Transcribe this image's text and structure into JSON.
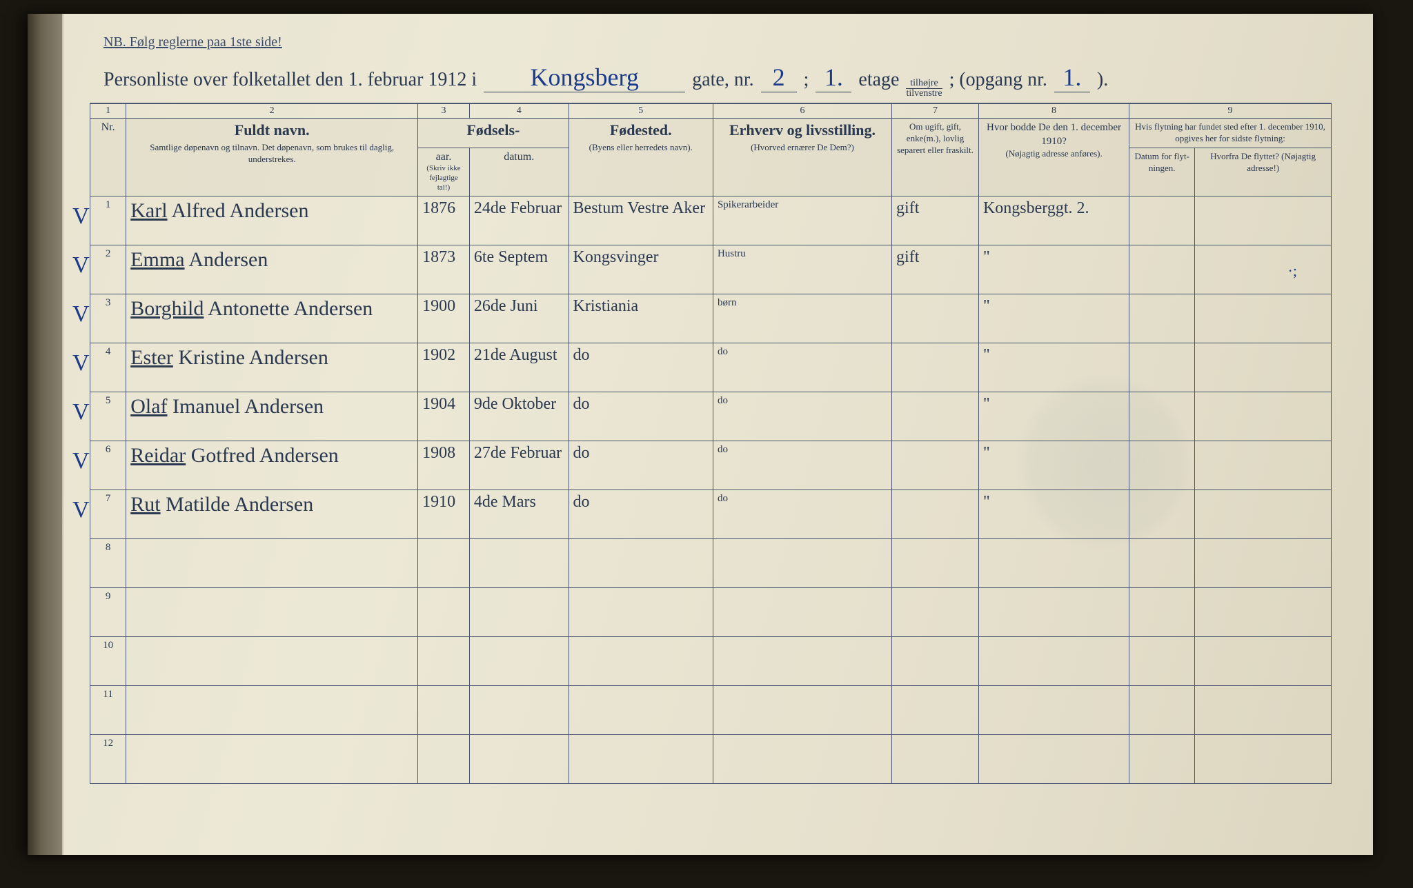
{
  "top_note": "NB.  Følg reglerne paa 1ste side!",
  "header": {
    "lead": "Personliste over folketallet den 1. februar 1912 i",
    "street": "Kongsberg",
    "gate": "gate, nr.",
    "nr": "2",
    "semi": ";",
    "etage_val": "1.",
    "etage": "etage",
    "side_top": "tilhøjre",
    "side_bot": "tilvenstre",
    "opgang": "; (opgang nr.",
    "opgang_val": "1.",
    "close": ")."
  },
  "cols": {
    "c1": "Nr.",
    "c2_big": "Fuldt navn.",
    "c2_sub": "Samtlige døpenavn og tilnavn. Det døpenavn, som brukes til daglig, understrekes.",
    "c34_top": "Fødsels-",
    "c3": "aar.",
    "c4": "datum.",
    "c34_note": "(Skriv ikke fejlagtige tal!)",
    "c5_big": "Fødested.",
    "c5_sub": "(Byens eller herredets navn).",
    "c6_big": "Erhverv og livsstilling.",
    "c6_sub": "(Hvorved ernærer De Dem?)",
    "c7": "Om ugift, gift, enke(m.), lovlig separert eller fraskilt.",
    "c8_big": "Hvor bodde De den 1. december 1910?",
    "c8_sub": "(Nøjagtig adresse anføres).",
    "c9_top": "Hvis flytning har fundet sted efter 1. december 1910, opgives her for sidste flytning:",
    "c9a": "Datum for flyt-ningen.",
    "c9b": "Hvorfra De flyttet? (Nøjagtig adresse!)"
  },
  "rows": [
    {
      "n": "1",
      "name_u": "Karl",
      "name_r": " Alfred  Andersen",
      "aar": "1876",
      "dat": "24de Februar",
      "sted": "Bestum Vestre Aker",
      "erv": "Spikerarbeider",
      "stat": "gift",
      "addr": "Kongsberggt. 2."
    },
    {
      "n": "2",
      "name_u": "Emma",
      "name_r": "  Andersen",
      "aar": "1873",
      "dat": "6te Septem",
      "sted": "Kongsvinger",
      "erv": "Hustru",
      "stat": "gift",
      "addr": "\""
    },
    {
      "n": "3",
      "name_u": "Borghild",
      "name_r": " Antonette Andersen",
      "aar": "1900",
      "dat": "26de Juni",
      "sted": "Kristiania",
      "erv": "børn",
      "stat": "",
      "addr": "\""
    },
    {
      "n": "4",
      "name_u": "Ester",
      "name_r": " Kristine  Andersen",
      "aar": "1902",
      "dat": "21de August",
      "sted": "do",
      "erv": "do",
      "stat": "",
      "addr": "\""
    },
    {
      "n": "5",
      "name_u": "Olaf",
      "name_r": " Imanuel Andersen",
      "aar": "1904",
      "dat": "9de Oktober",
      "sted": "do",
      "erv": "do",
      "stat": "",
      "addr": "\""
    },
    {
      "n": "6",
      "name_u": "Reidar",
      "name_r": " Gotfred Andersen",
      "aar": "1908",
      "dat": "27de Februar",
      "sted": "do",
      "erv": "do",
      "stat": "",
      "addr": "\""
    },
    {
      "n": "7",
      "name_u": "Rut",
      "name_r": " Matilde  Andersen",
      "aar": "1910",
      "dat": "4de Mars",
      "sted": "do",
      "erv": "do",
      "stat": "",
      "addr": "\""
    },
    {
      "n": "8"
    },
    {
      "n": "9"
    },
    {
      "n": "10"
    },
    {
      "n": "11"
    },
    {
      "n": "12"
    }
  ],
  "colnums": [
    "1",
    "2",
    "3",
    "4",
    "5",
    "6",
    "7",
    "8",
    "9"
  ],
  "colors": {
    "ink_print": "#2a3850",
    "ink_hand": "#1a3a8a",
    "paper": "#e8e4d0",
    "border": "#4a5670"
  }
}
